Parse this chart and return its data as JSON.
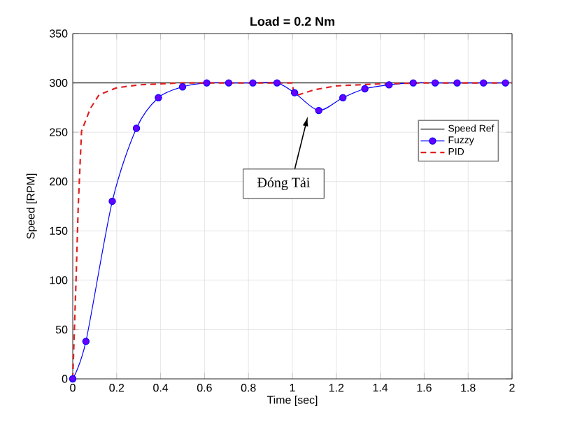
{
  "chart_data": {
    "type": "line",
    "title": "Load = 0.2 Nm",
    "xlabel": "Time [sec]",
    "ylabel": "Speed [RPM]",
    "xlim": [
      0,
      2
    ],
    "ylim": [
      0,
      350
    ],
    "xticks": [
      0,
      0.2,
      0.4,
      0.6,
      0.8,
      1,
      1.2,
      1.4,
      1.6,
      1.8,
      2
    ],
    "yticks": [
      0,
      50,
      100,
      150,
      200,
      250,
      300,
      350
    ],
    "grid": true,
    "legend": "top right",
    "ref_lines": [
      {
        "axis": "y",
        "value": 300,
        "label": "Speed Ref",
        "color": "#404040",
        "line_style": "solid"
      }
    ],
    "series": [
      {
        "name": "Fuzzy",
        "color": "#0000ff",
        "marker": "circle",
        "line_style": "solid",
        "x": [
          0,
          0.06,
          0.18,
          0.29,
          0.39,
          0.5,
          0.61,
          0.71,
          0.82,
          0.93,
          1.01,
          1.12,
          1.23,
          1.33,
          1.44,
          1.55,
          1.65,
          1.75,
          1.87,
          1.97
        ],
        "values": [
          0,
          38,
          180,
          254,
          285,
          296,
          300,
          300,
          300,
          300,
          290,
          272,
          285,
          294,
          298,
          300,
          300,
          300,
          300,
          300
        ]
      },
      {
        "name": "PID",
        "color": "#e02020",
        "marker": "none",
        "line_style": "dashed",
        "x": [
          0,
          0.015,
          0.025,
          0.04,
          0.08,
          0.12,
          0.2,
          0.3,
          0.5,
          1.0,
          1.005,
          1.03,
          1.1,
          1.2,
          1.4,
          1.6,
          2
        ],
        "values": [
          0,
          100,
          175,
          251,
          274,
          288,
          295,
          298,
          300,
          300,
          291,
          288,
          293,
          297,
          299,
          300,
          300
        ]
      }
    ],
    "annotations": [
      "Đóng Tải"
    ]
  }
}
